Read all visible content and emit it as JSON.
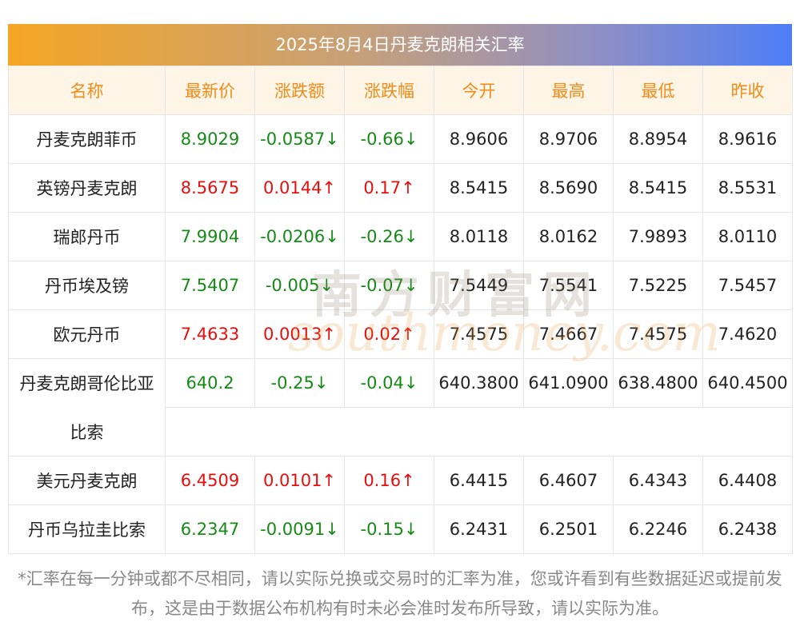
{
  "title": "2025年8月4日丹麦克朗相关汇率",
  "columns": [
    "名称",
    "最新价",
    "涨跌额",
    "涨跌幅",
    "今开",
    "最高",
    "最低",
    "昨收"
  ],
  "rows": [
    {
      "name": "丹麦克朗菲币",
      "latest": "8.9029",
      "change": "-0.0587↓",
      "pct": "-0.66↓",
      "open": "8.9606",
      "high": "8.9706",
      "low": "8.8954",
      "prev": "8.9616",
      "dir": "down"
    },
    {
      "name": "英镑丹麦克朗",
      "latest": "8.5675",
      "change": "0.0144↑",
      "pct": "0.17↑",
      "open": "8.5415",
      "high": "8.5690",
      "low": "8.5415",
      "prev": "8.5531",
      "dir": "up"
    },
    {
      "name": "瑞郎丹币",
      "latest": "7.9904",
      "change": "-0.0206↓",
      "pct": "-0.26↓",
      "open": "8.0118",
      "high": "8.0162",
      "low": "7.9893",
      "prev": "8.0110",
      "dir": "down"
    },
    {
      "name": "丹币埃及镑",
      "latest": "7.5407",
      "change": "-0.005↓",
      "pct": "-0.07↓",
      "open": "7.5449",
      "high": "7.5541",
      "low": "7.5225",
      "prev": "7.5457",
      "dir": "down"
    },
    {
      "name": "欧元丹币",
      "latest": "7.4633",
      "change": "0.0013↑",
      "pct": "0.02↑",
      "open": "7.4575",
      "high": "7.4667",
      "low": "7.4575",
      "prev": "7.4620",
      "dir": "up"
    },
    {
      "name": "丹麦克朗哥伦比亚",
      "name_cont": "比索",
      "latest": "640.2",
      "change": "-0.25↓",
      "pct": "-0.04↓",
      "open": "640.3800",
      "high": "641.0900",
      "low": "638.4800",
      "prev": "640.4500",
      "dir": "down",
      "wrap": true
    },
    {
      "name": "美元丹麦克朗",
      "latest": "6.4509",
      "change": "0.0101↑",
      "pct": "0.16↑",
      "open": "6.4415",
      "high": "6.4607",
      "low": "6.4343",
      "prev": "6.4408",
      "dir": "up"
    },
    {
      "name": "丹币乌拉圭比索",
      "latest": "6.2347",
      "change": "-0.0091↓",
      "pct": "-0.15↓",
      "open": "6.2431",
      "high": "6.2501",
      "low": "6.2246",
      "prev": "6.2438",
      "dir": "down"
    }
  ],
  "watermark": {
    "cn": "南方财富网",
    "en": "southmoney.com"
  },
  "footnote": "*汇率在每一分钟或都不尽相同，请以实际兑换或交易时的汇率为准，您或许看到有些数据延迟或提前发布，这是由于数据公布机构有时未必会准时发布所导致，请以实际为准。",
  "colors": {
    "up": "#e80e0e",
    "down": "#168a16",
    "header_text": "#f08c1a",
    "header_bg": "#fef5e7"
  }
}
